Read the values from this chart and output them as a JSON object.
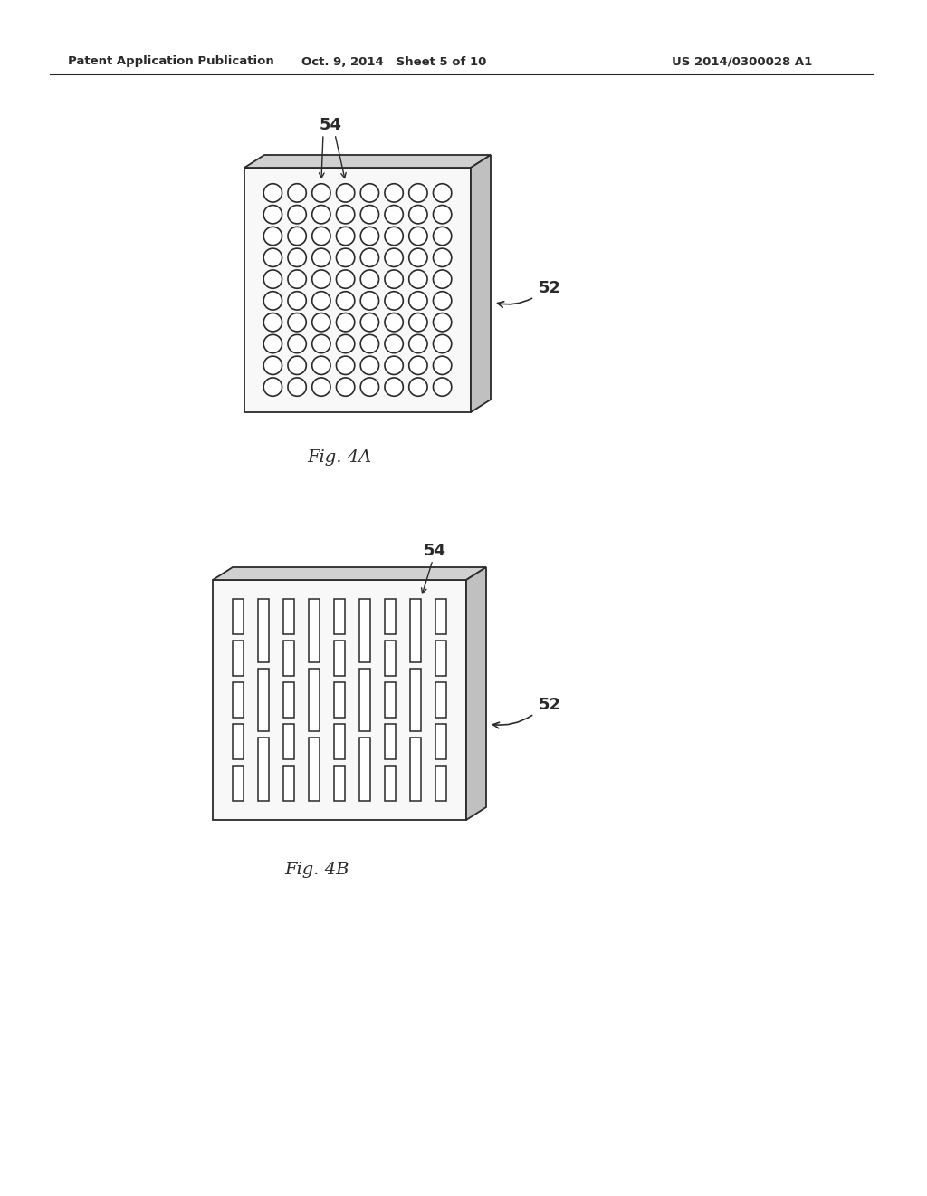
{
  "header_left": "Patent Application Publication",
  "header_mid": "Oct. 9, 2014   Sheet 5 of 10",
  "header_right": "US 2014/0300028 A1",
  "fig4a_label": "Fig. 4A",
  "fig4b_label": "Fig. 4B",
  "label_54a": "54",
  "label_52a": "52",
  "label_54b": "54",
  "label_52b": "52",
  "bg_color": "#ffffff",
  "line_color": "#2a2a2a",
  "fig4a_rows": 10,
  "fig4a_cols": 8,
  "fig4b_slot_cols": 9,
  "fig4b_slots_per_col": 8
}
